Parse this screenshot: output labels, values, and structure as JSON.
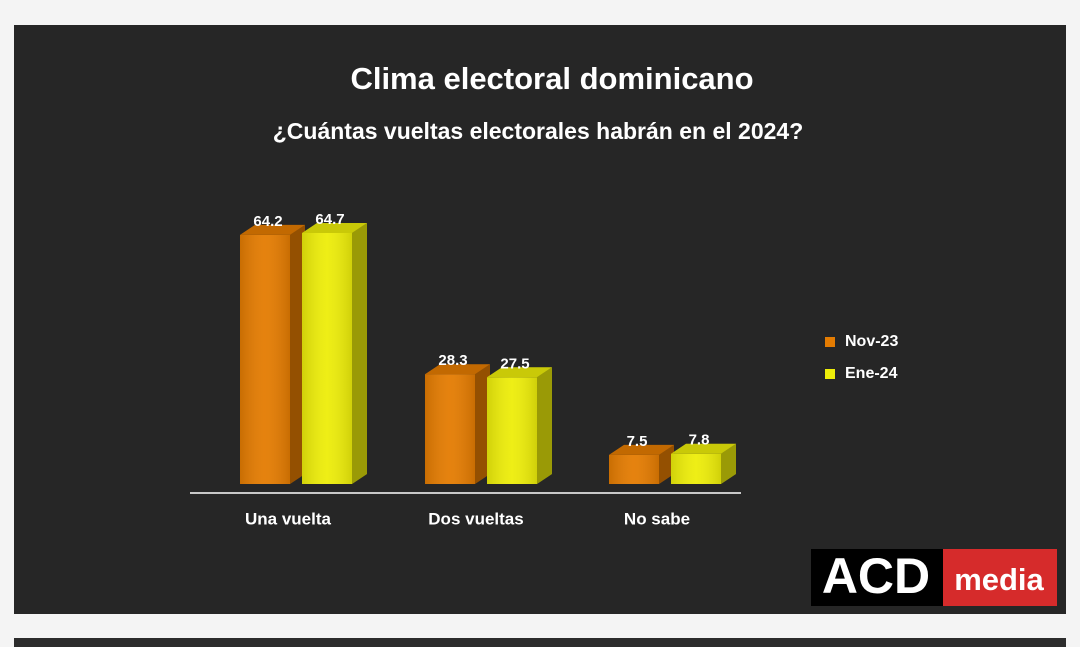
{
  "chart_data": {
    "type": "bar3d",
    "title": "Clima electoral dominicano",
    "subtitle": "¿Cuántas vueltas electorales habrán en el 2024?",
    "categories": [
      "Una vuelta",
      "Dos vueltas",
      "No sabe"
    ],
    "series": [
      {
        "name": "Nov-23",
        "color": "#e47c02",
        "values": [
          64.2,
          28.3,
          7.5
        ]
      },
      {
        "name": "Ene-24",
        "color": "#eded0a",
        "values": [
          64.7,
          27.5,
          7.8
        ]
      }
    ],
    "legend": "right"
  },
  "logo": {
    "left": "ACD",
    "right": "media"
  }
}
